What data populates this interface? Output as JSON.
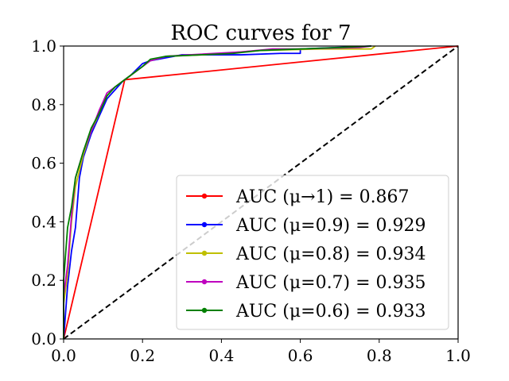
{
  "chart_data": {
    "type": "line",
    "title": "ROC curves for 7",
    "xlabel": "",
    "ylabel": "",
    "xlim": [
      0.0,
      1.0
    ],
    "ylim": [
      0.0,
      1.0
    ],
    "grid": false,
    "legend_position": "lower-right",
    "x_ticks": [
      "0.0",
      "0.2",
      "0.4",
      "0.6",
      "0.8",
      "1.0"
    ],
    "y_ticks": [
      "0.0",
      "0.2",
      "0.4",
      "0.6",
      "0.8",
      "1.0"
    ],
    "diagonal": {
      "x": [
        0.0,
        1.0
      ],
      "y": [
        0.0,
        1.0
      ],
      "style": "dashed",
      "color": "#000000"
    },
    "series": [
      {
        "name": "AUC (μ→1) = 0.867",
        "color": "#ff0000",
        "x": [
          0.0,
          0.155,
          1.0
        ],
        "y": [
          0.0,
          0.885,
          1.0
        ]
      },
      {
        "name": "AUC (μ=0.9) = 0.929",
        "color": "#0000ff",
        "x": [
          0.0,
          0.01,
          0.02,
          0.03,
          0.04,
          0.05,
          0.07,
          0.09,
          0.11,
          0.13,
          0.15,
          0.17,
          0.2,
          0.22,
          0.26,
          0.3,
          0.45,
          0.55,
          0.6,
          0.6,
          0.78
        ],
        "y": [
          0.0,
          0.18,
          0.3,
          0.38,
          0.55,
          0.62,
          0.7,
          0.76,
          0.82,
          0.85,
          0.88,
          0.9,
          0.94,
          0.95,
          0.96,
          0.97,
          0.97,
          0.975,
          0.975,
          0.99,
          1.0
        ]
      },
      {
        "name": "AUC (μ=0.8) = 0.934",
        "color": "#bfbf00",
        "x": [
          0.0,
          0.0,
          0.01,
          0.02,
          0.03,
          0.05,
          0.07,
          0.09,
          0.11,
          0.13,
          0.15,
          0.17,
          0.2,
          0.22,
          0.26,
          0.35,
          0.5,
          0.65,
          0.78,
          0.79
        ],
        "y": [
          0.0,
          0.12,
          0.22,
          0.4,
          0.52,
          0.63,
          0.71,
          0.77,
          0.83,
          0.86,
          0.88,
          0.9,
          0.93,
          0.95,
          0.965,
          0.97,
          0.985,
          0.99,
          0.99,
          1.0
        ]
      },
      {
        "name": "AUC (μ=0.7) = 0.935",
        "color": "#bf00bf",
        "x": [
          0.0,
          0.0,
          0.01,
          0.02,
          0.03,
          0.05,
          0.07,
          0.09,
          0.11,
          0.13,
          0.15,
          0.17,
          0.2,
          0.22,
          0.26,
          0.32,
          0.45,
          0.53,
          0.6,
          0.75,
          0.78
        ],
        "y": [
          0.0,
          0.15,
          0.25,
          0.42,
          0.55,
          0.64,
          0.71,
          0.78,
          0.84,
          0.86,
          0.88,
          0.9,
          0.93,
          0.95,
          0.965,
          0.97,
          0.98,
          0.99,
          0.99,
          0.995,
          1.0
        ]
      },
      {
        "name": "AUC (μ=0.6) = 0.933",
        "color": "#008000",
        "x": [
          0.0,
          0.0,
          0.01,
          0.02,
          0.03,
          0.05,
          0.07,
          0.09,
          0.11,
          0.13,
          0.15,
          0.17,
          0.2,
          0.22,
          0.26,
          0.35,
          0.43,
          0.5,
          0.6,
          0.7,
          0.78
        ],
        "y": [
          0.0,
          0.2,
          0.38,
          0.45,
          0.55,
          0.64,
          0.72,
          0.77,
          0.83,
          0.86,
          0.88,
          0.9,
          0.93,
          0.955,
          0.965,
          0.97,
          0.975,
          0.985,
          0.99,
          0.995,
          1.0
        ]
      }
    ]
  }
}
